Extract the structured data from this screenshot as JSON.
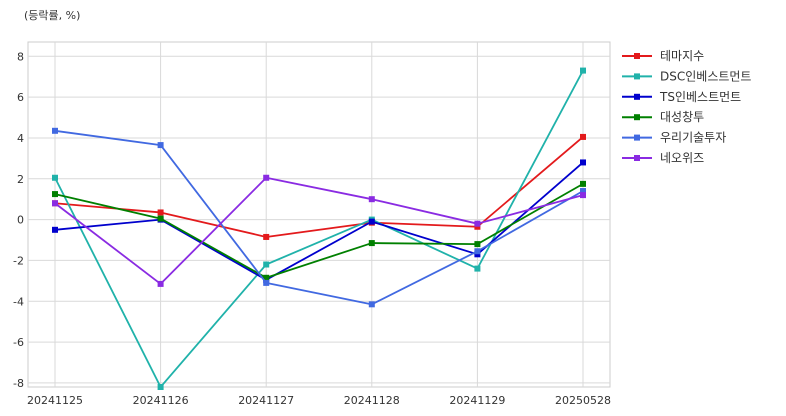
{
  "chart_data": {
    "type": "line",
    "unit_label": "(등락률, %)",
    "categories": [
      "20241125",
      "20241126",
      "20241127",
      "20241128",
      "20241129",
      "20250528"
    ],
    "ylim": [
      -8.2,
      8.7
    ],
    "yticks": [
      -8,
      -6,
      -4,
      -2,
      0,
      2,
      4,
      6,
      8
    ],
    "grid": true,
    "legend_position": "right",
    "series": [
      {
        "name": "테마지수",
        "color": "#e31a1c",
        "values": [
          0.8,
          0.35,
          -0.85,
          -0.15,
          -0.35,
          4.05
        ]
      },
      {
        "name": "DSC인베스트먼트",
        "color": "#20b2aa",
        "values": [
          2.05,
          -8.2,
          -2.2,
          0.0,
          -2.4,
          7.3
        ]
      },
      {
        "name": "TS인베스트먼트",
        "color": "#0000cd",
        "values": [
          -0.5,
          0.0,
          -2.95,
          -0.1,
          -1.7,
          2.8
        ]
      },
      {
        "name": "대성창투",
        "color": "#008000",
        "values": [
          1.25,
          0.05,
          -2.85,
          -1.15,
          -1.2,
          1.75
        ]
      },
      {
        "name": "우리기술투자",
        "color": "#4169e1",
        "values": [
          4.35,
          3.65,
          -3.1,
          -4.15,
          -1.55,
          1.4
        ]
      },
      {
        "name": "네오위즈",
        "color": "#8a2be2",
        "values": [
          0.8,
          -3.15,
          2.05,
          1.0,
          -0.2,
          1.2
        ]
      }
    ]
  }
}
